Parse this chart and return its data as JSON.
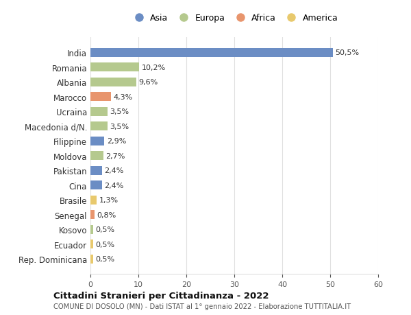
{
  "countries": [
    "India",
    "Romania",
    "Albania",
    "Marocco",
    "Ucraina",
    "Macedonia d/N.",
    "Filippine",
    "Moldova",
    "Pakistan",
    "Cina",
    "Brasile",
    "Senegal",
    "Kosovo",
    "Ecuador",
    "Rep. Dominicana"
  ],
  "values": [
    50.5,
    10.2,
    9.6,
    4.3,
    3.5,
    3.5,
    2.9,
    2.7,
    2.4,
    2.4,
    1.3,
    0.8,
    0.5,
    0.5,
    0.5
  ],
  "labels": [
    "50,5%",
    "10,2%",
    "9,6%",
    "4,3%",
    "3,5%",
    "3,5%",
    "2,9%",
    "2,7%",
    "2,4%",
    "2,4%",
    "1,3%",
    "0,8%",
    "0,5%",
    "0,5%",
    "0,5%"
  ],
  "continents": [
    "Asia",
    "Europa",
    "Europa",
    "Africa",
    "Europa",
    "Europa",
    "Asia",
    "Europa",
    "Asia",
    "Asia",
    "America",
    "Africa",
    "Europa",
    "America",
    "America"
  ],
  "continent_colors": {
    "Asia": "#6b8dc4",
    "Europa": "#b5c98e",
    "Africa": "#e8956d",
    "America": "#e8c96d"
  },
  "legend_order": [
    "Asia",
    "Europa",
    "Africa",
    "America"
  ],
  "title": "Cittadini Stranieri per Cittadinanza - 2022",
  "subtitle": "COMUNE DI DOSOLO (MN) - Dati ISTAT al 1° gennaio 2022 - Elaborazione TUTTITALIA.IT",
  "xlim": [
    0,
    60
  ],
  "xticks": [
    0,
    10,
    20,
    30,
    40,
    50,
    60
  ],
  "background_color": "#ffffff",
  "grid_color": "#e0e0e0",
  "bar_height": 0.6
}
